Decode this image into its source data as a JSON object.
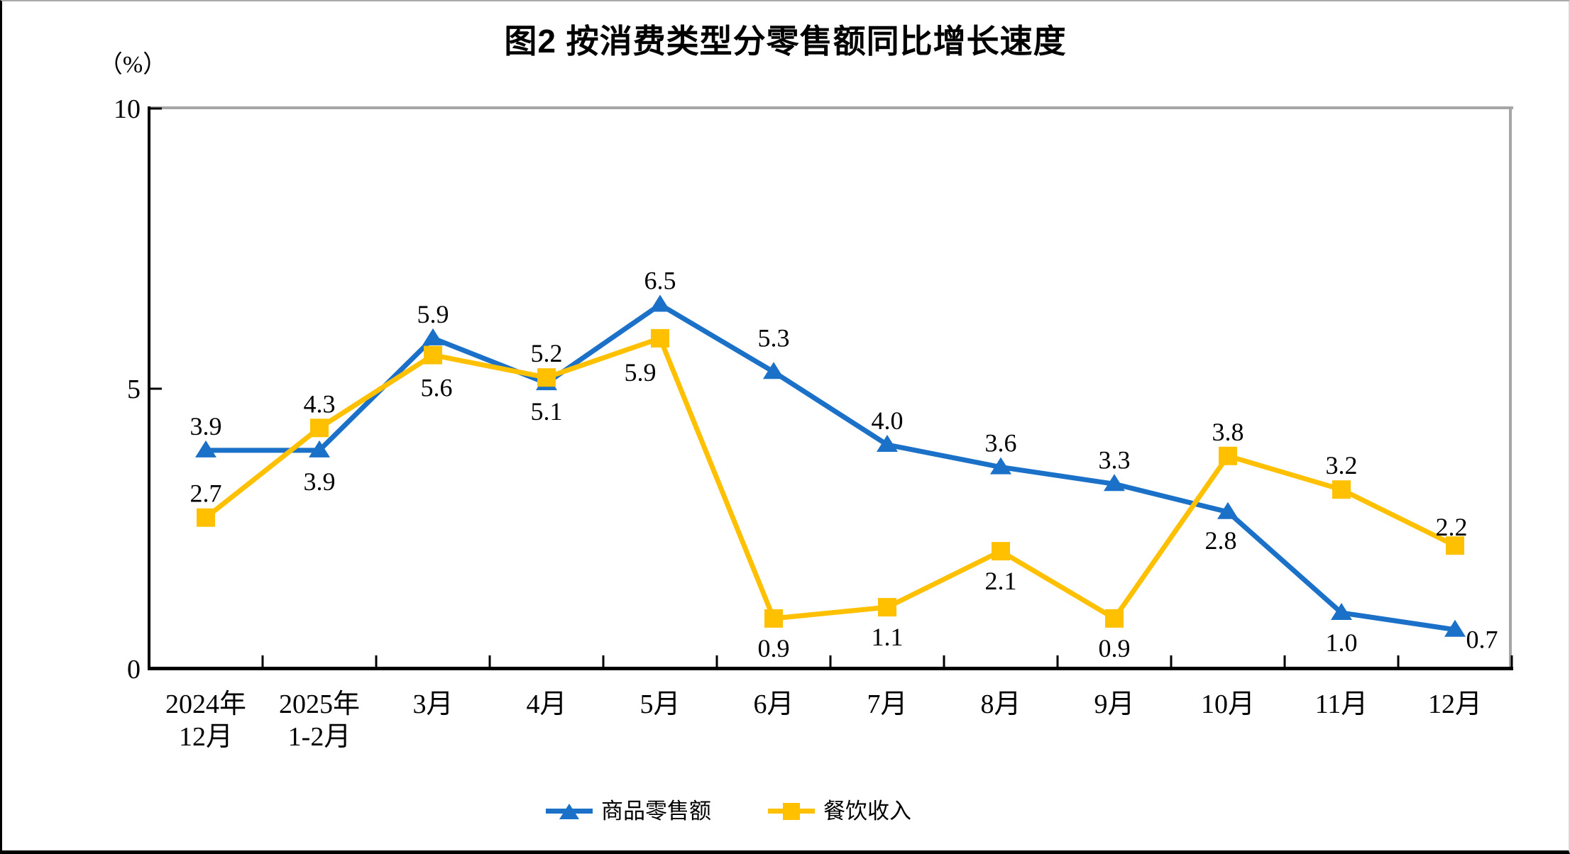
{
  "title": "图2  按消费类型分零售额同比增长速度",
  "y_axis": {
    "unit_label": "（%）",
    "tick_labels": [
      "0",
      "5",
      "10"
    ],
    "ticks": [
      0,
      5,
      10
    ],
    "min": 0,
    "max": 10
  },
  "x_axis": {
    "categories": [
      [
        "2024年",
        "12月"
      ],
      [
        "2025年",
        "1-2月"
      ],
      [
        "3月"
      ],
      [
        "4月"
      ],
      [
        "5月"
      ],
      [
        "6月"
      ],
      [
        "7月"
      ],
      [
        "8月"
      ],
      [
        "9月"
      ],
      [
        "10月"
      ],
      [
        "11月"
      ],
      [
        "12月"
      ]
    ]
  },
  "legend": {
    "items": [
      {
        "label": "商品零售额",
        "marker": "triangle"
      },
      {
        "label": "餐饮收入",
        "marker": "square"
      }
    ]
  },
  "colors": {
    "goods_blue": "#1B70C8",
    "catering_yellow": "#FFC000",
    "frame_gray": "#A6A6A6",
    "axis_black": "#000000"
  },
  "chart_data": {
    "type": "line",
    "title": "图2  按消费类型分零售额同比增长速度",
    "xlabel": "",
    "ylabel": "（%）",
    "ylim": [
      0,
      10
    ],
    "grid": false,
    "legend_position": "bottom",
    "categories": [
      "2024年12月",
      "2025年1-2月",
      "3月",
      "4月",
      "5月",
      "6月",
      "7月",
      "8月",
      "9月",
      "10月",
      "11月",
      "12月"
    ],
    "series": [
      {
        "name": "商品零售额",
        "color": "#1B70C8",
        "marker": "triangle",
        "values": [
          3.9,
          3.9,
          5.9,
          5.1,
          6.5,
          5.3,
          4.0,
          3.6,
          3.3,
          2.8,
          1.0,
          0.7
        ],
        "labels": [
          "3.9",
          "3.9",
          "5.9",
          "5.1",
          "6.5",
          "5.3",
          "4.0",
          "3.6",
          "3.3",
          "2.8",
          "1.0",
          "0.7"
        ],
        "label_offsets": [
          [
            0,
            -22
          ],
          [
            0,
            56
          ],
          [
            0,
            -22
          ],
          [
            0,
            52
          ],
          [
            0,
            -22
          ],
          [
            0,
            -36
          ],
          [
            0,
            -22
          ],
          [
            0,
            -22
          ],
          [
            0,
            -22
          ],
          [
            -10,
            52
          ],
          [
            0,
            54
          ],
          [
            38,
            26
          ]
        ]
      },
      {
        "name": "餐饮收入",
        "color": "#FFC000",
        "marker": "square",
        "values": [
          2.7,
          4.3,
          5.6,
          5.2,
          5.9,
          0.9,
          1.1,
          2.1,
          0.9,
          3.8,
          3.2,
          2.2
        ],
        "labels": [
          "2.7",
          "4.3",
          "5.6",
          "5.2",
          "5.9",
          "0.9",
          "1.1",
          "2.1",
          "0.9",
          "3.8",
          "3.2",
          "2.2"
        ],
        "label_offsets": [
          [
            0,
            -22
          ],
          [
            0,
            -22
          ],
          [
            5,
            58
          ],
          [
            0,
            -22
          ],
          [
            -28,
            60
          ],
          [
            0,
            54
          ],
          [
            0,
            54
          ],
          [
            0,
            54
          ],
          [
            0,
            54
          ],
          [
            0,
            -22
          ],
          [
            0,
            -22
          ],
          [
            -5,
            -14
          ]
        ]
      }
    ]
  }
}
